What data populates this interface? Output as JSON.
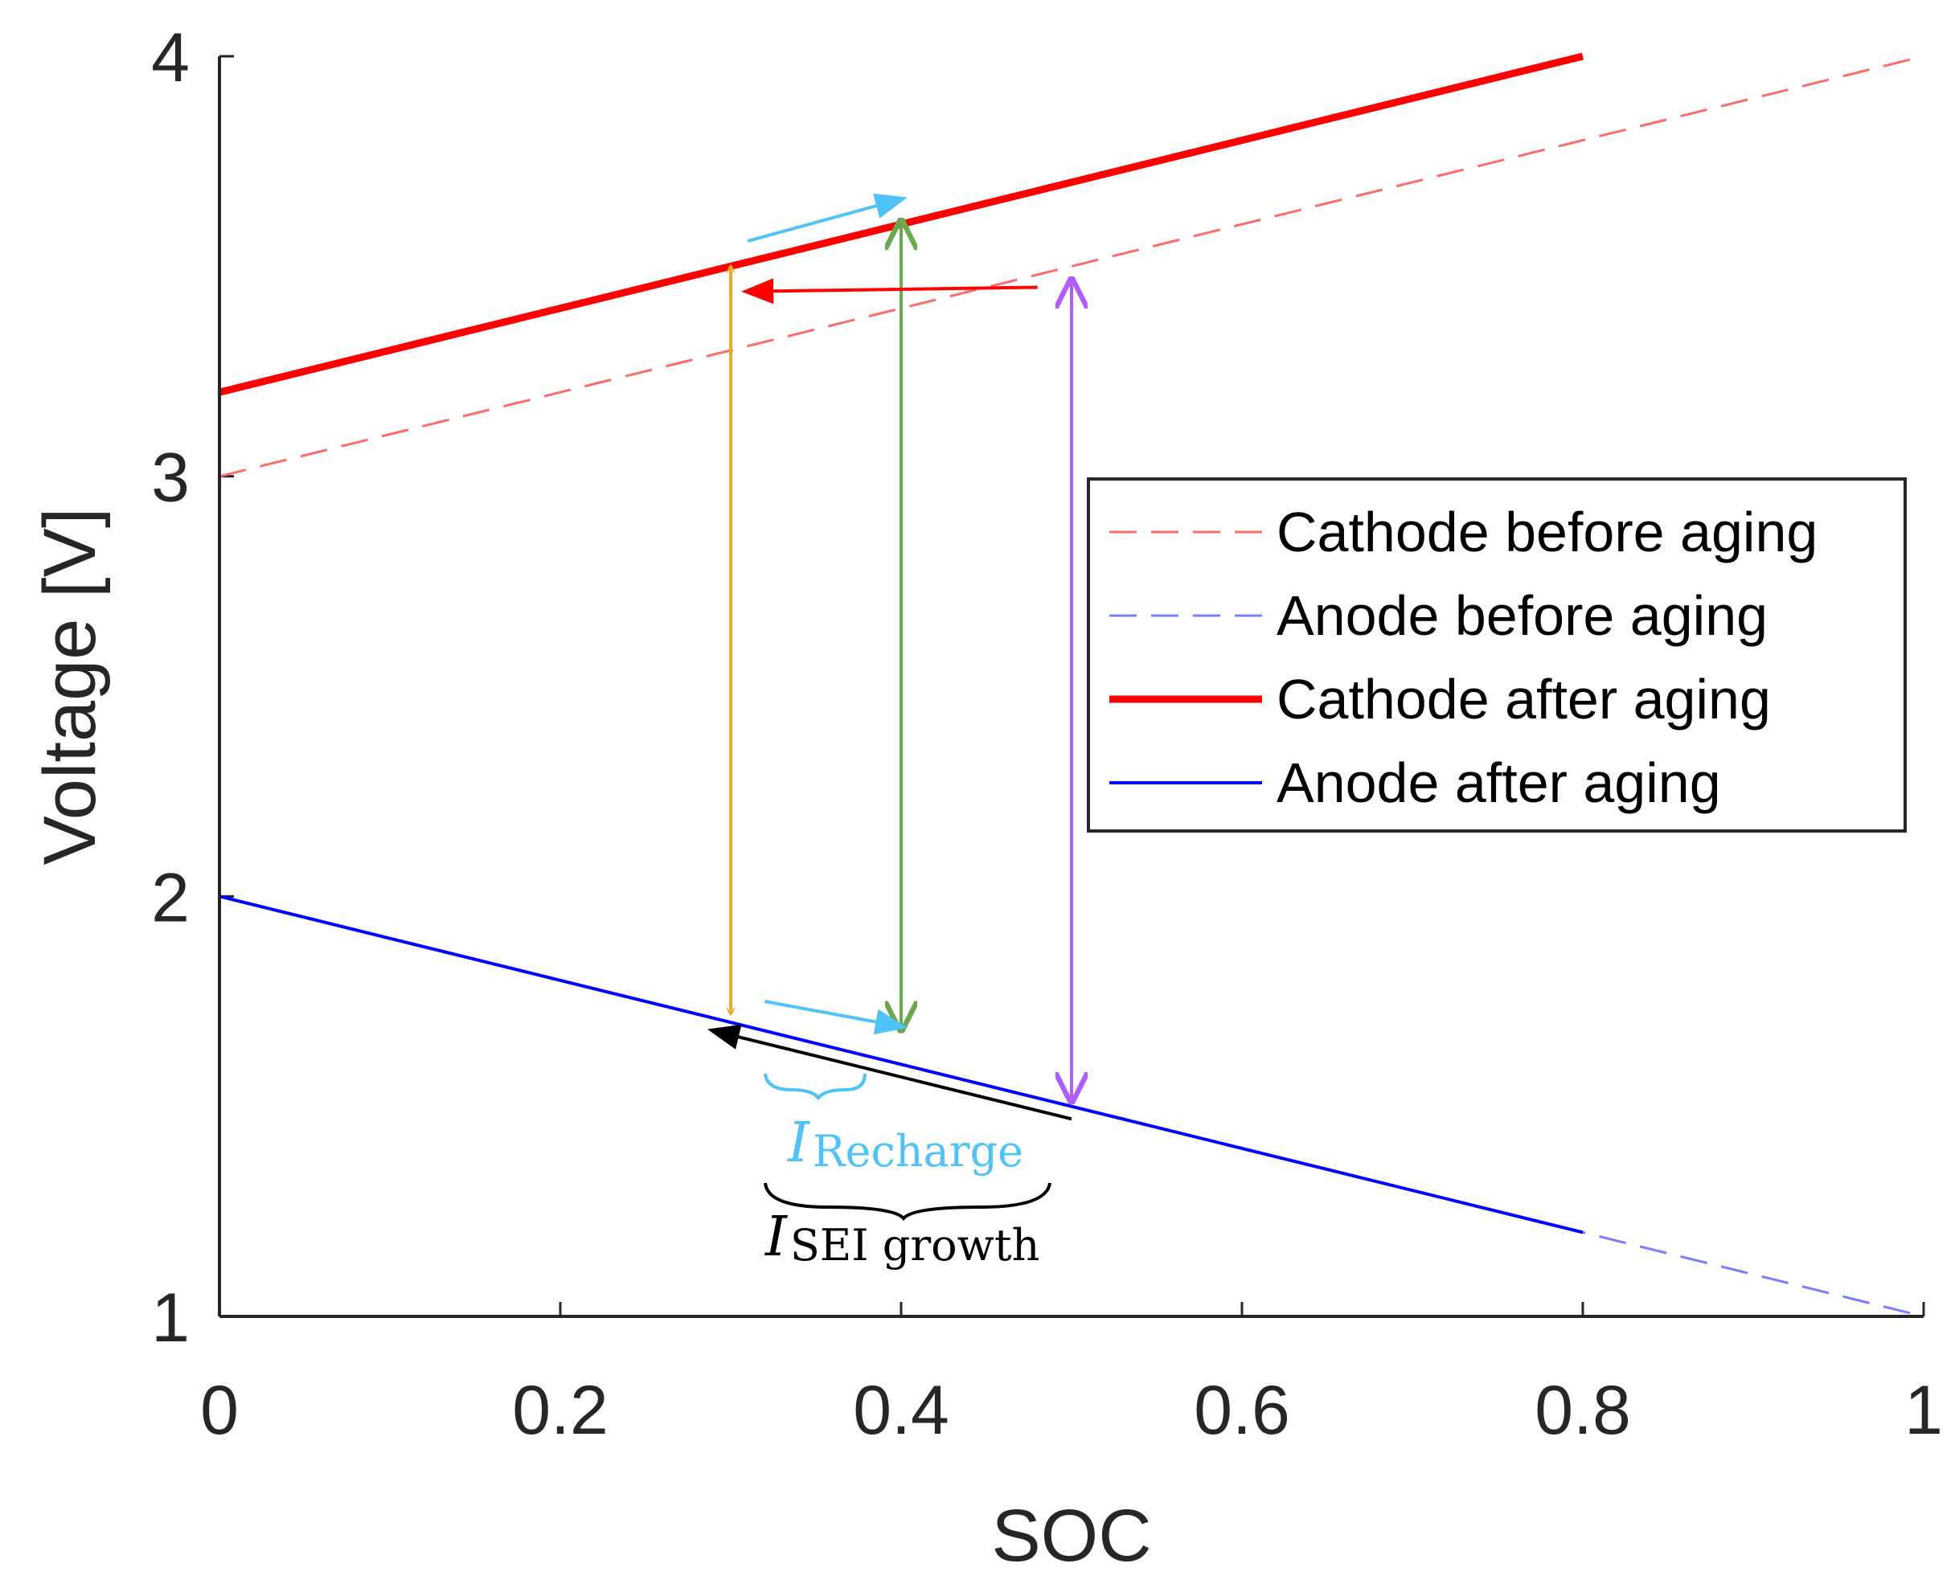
{
  "chart_data": {
    "type": "line",
    "xlabel": "SOC",
    "ylabel": "Voltage [V]",
    "xlim": [
      0,
      1
    ],
    "ylim": [
      1,
      4
    ],
    "xticks": [
      0,
      0.2,
      0.4,
      0.6,
      0.8,
      1
    ],
    "xtick_labels": [
      "0",
      "0.2",
      "0.4",
      "0.6",
      "0.8",
      "1"
    ],
    "yticks": [
      1,
      2,
      3,
      4
    ],
    "ytick_labels": [
      "1",
      "2",
      "3",
      "4"
    ],
    "legend_position": "right-middle",
    "series": [
      {
        "name": "Cathode before aging",
        "color": "#ff6b6b",
        "style": "dashed",
        "x": [
          0,
          1
        ],
        "y": [
          3.0,
          4.0
        ]
      },
      {
        "name": "Anode before aging",
        "color": "#7b7bff",
        "style": "dashed",
        "x": [
          0,
          1
        ],
        "y": [
          2.0,
          1.0
        ]
      },
      {
        "name": "Cathode after aging",
        "color": "#ff0000",
        "style": "solid-thick",
        "x": [
          0,
          0.8
        ],
        "y": [
          3.2,
          4.0
        ]
      },
      {
        "name": "Anode  after aging",
        "color": "#0000ff",
        "style": "solid",
        "x": [
          0,
          0.8
        ],
        "y": [
          2.0,
          1.2
        ]
      }
    ],
    "annotations": {
      "double_arrows": [
        {
          "name": "orange",
          "color": "#f0a830",
          "x": 0.3,
          "y_from": 3.5,
          "y_to": 1.72
        },
        {
          "name": "green",
          "color": "#6aa84f",
          "x": 0.4,
          "y_from": 3.6,
          "y_to": 1.69
        },
        {
          "name": "purple",
          "color": "#b05cff",
          "x": 0.5,
          "y_from": 3.46,
          "y_to": 1.52
        }
      ],
      "arrows": [
        {
          "name": "recharge-cathode",
          "color": "#4fc3f7",
          "from": [
            0.31,
            3.56
          ],
          "to": [
            0.4,
            3.66
          ]
        },
        {
          "name": "recharge-anode",
          "color": "#4fc3f7",
          "from": [
            0.32,
            1.75
          ],
          "to": [
            0.4,
            1.69
          ]
        },
        {
          "name": "shift-cathode",
          "color": "#ff0000",
          "from": [
            0.48,
            3.45
          ],
          "to": [
            0.31,
            3.44
          ]
        },
        {
          "name": "sei-growth-anode",
          "color": "#000000",
          "from": [
            0.5,
            1.47
          ],
          "to": [
            0.29,
            1.68
          ]
        }
      ],
      "labels": [
        {
          "name": "recharge-label",
          "main": "I",
          "sub": "Recharge",
          "color": "#4fc3f7"
        },
        {
          "name": "sei-label",
          "main": "I",
          "sub": "SEI growth",
          "color": "#000000"
        }
      ]
    }
  }
}
